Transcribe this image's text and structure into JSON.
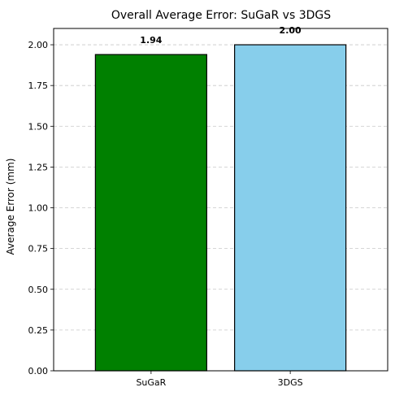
{
  "chart_data": {
    "type": "bar",
    "title": "Overall Average Error: SuGaR vs 3DGS",
    "xlabel": "",
    "ylabel": "Average Error (mm)",
    "categories": [
      "SuGaR",
      "3DGS"
    ],
    "values": [
      1.94,
      2.0
    ],
    "data_labels": [
      "1.94",
      "2.00"
    ],
    "bar_colors": [
      "#008000",
      "#87CEEB"
    ],
    "edge_color": "#000000",
    "ylim": [
      0,
      2.1
    ],
    "yticks": [
      0.0,
      0.25,
      0.5,
      0.75,
      1.0,
      1.25,
      1.5,
      1.75,
      2.0
    ],
    "ytick_labels": [
      "0.00",
      "0.25",
      "0.50",
      "0.75",
      "1.00",
      "1.25",
      "1.50",
      "1.75",
      "2.00"
    ],
    "grid": "y-dashed",
    "legend": "none"
  }
}
